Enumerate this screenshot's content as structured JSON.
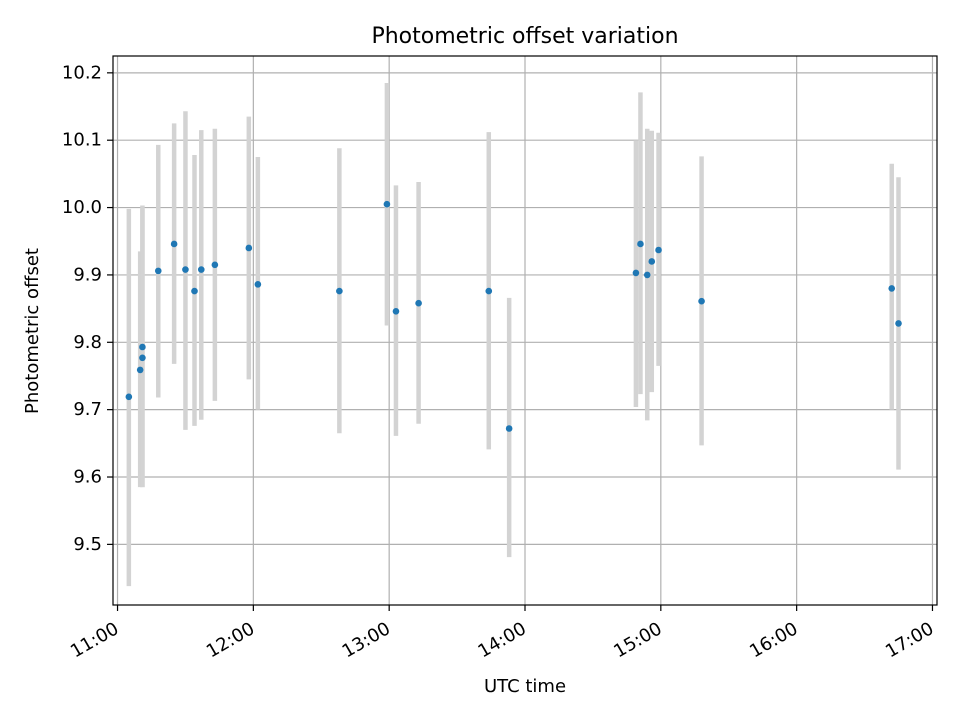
{
  "chart_data": {
    "type": "scatter",
    "title": "Photometric offset variation",
    "xlabel": "UTC time",
    "ylabel": "Photometric offset",
    "xlim": [
      "10:58",
      "17:02"
    ],
    "ylim": [
      9.41,
      10.225
    ],
    "x_ticks": [
      "11:00",
      "12:00",
      "13:00",
      "14:00",
      "15:00",
      "16:00",
      "17:00"
    ],
    "y_ticks": [
      "9.5",
      "9.6",
      "9.7",
      "9.8",
      "9.9",
      "10.0",
      "10.1",
      "10.2"
    ],
    "grid": true,
    "colors": {
      "point": "#1f77b4",
      "errorbar": "#d3d3d3",
      "grid": "#b0b0b0",
      "axes": "#000000"
    },
    "series": [
      {
        "points": [
          {
            "x": "11:05",
            "y": 9.719,
            "low": 9.438,
            "high": 9.998
          },
          {
            "x": "11:10",
            "y": 9.759,
            "low": 9.585,
            "high": 9.935
          },
          {
            "x": "11:11",
            "y": 9.777,
            "low": 9.585,
            "high": 9.998
          },
          {
            "x": "11:11",
            "y": 9.793,
            "low": 9.585,
            "high": 10.003
          },
          {
            "x": "11:18",
            "y": 9.906,
            "low": 9.718,
            "high": 10.093
          },
          {
            "x": "11:25",
            "y": 9.946,
            "low": 9.768,
            "high": 10.125
          },
          {
            "x": "11:30",
            "y": 9.908,
            "low": 9.67,
            "high": 10.143
          },
          {
            "x": "11:34",
            "y": 9.876,
            "low": 9.676,
            "high": 10.078
          },
          {
            "x": "11:37",
            "y": 9.908,
            "low": 9.685,
            "high": 10.115
          },
          {
            "x": "11:43",
            "y": 9.915,
            "low": 9.713,
            "high": 10.117
          },
          {
            "x": "11:58",
            "y": 9.94,
            "low": 9.745,
            "high": 10.135
          },
          {
            "x": "12:02",
            "y": 9.886,
            "low": 9.7,
            "high": 10.075
          },
          {
            "x": "12:38",
            "y": 9.876,
            "low": 9.665,
            "high": 10.088
          },
          {
            "x": "12:59",
            "y": 10.005,
            "low": 9.825,
            "high": 10.185
          },
          {
            "x": "13:03",
            "y": 9.846,
            "low": 9.661,
            "high": 10.033
          },
          {
            "x": "13:13",
            "y": 9.858,
            "low": 9.679,
            "high": 10.038
          },
          {
            "x": "13:44",
            "y": 9.876,
            "low": 9.641,
            "high": 10.112
          },
          {
            "x": "13:53",
            "y": 9.672,
            "low": 9.481,
            "high": 9.866
          },
          {
            "x": "14:49",
            "y": 9.903,
            "low": 9.704,
            "high": 10.1
          },
          {
            "x": "14:51",
            "y": 9.946,
            "low": 9.723,
            "high": 10.171
          },
          {
            "x": "14:54",
            "y": 9.9,
            "low": 9.684,
            "high": 10.117
          },
          {
            "x": "14:56",
            "y": 9.92,
            "low": 9.726,
            "high": 10.114
          },
          {
            "x": "14:59",
            "y": 9.937,
            "low": 9.765,
            "high": 10.111
          },
          {
            "x": "15:18",
            "y": 9.861,
            "low": 9.647,
            "high": 10.076
          },
          {
            "x": "16:42",
            "y": 9.88,
            "low": 9.7,
            "high": 10.065
          },
          {
            "x": "16:45",
            "y": 9.828,
            "low": 9.611,
            "high": 10.045
          }
        ]
      }
    ]
  }
}
